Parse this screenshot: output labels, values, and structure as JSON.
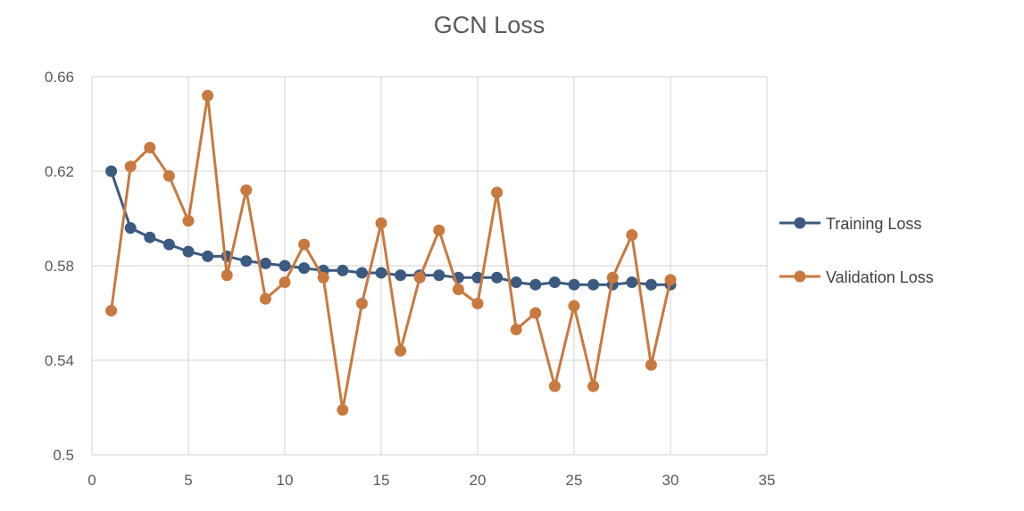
{
  "chart_data": {
    "type": "line",
    "title": "GCN Loss",
    "xlabel": "",
    "ylabel": "",
    "xlim": [
      0,
      35
    ],
    "ylim": [
      0.5,
      0.66
    ],
    "xticks": [
      0,
      5,
      10,
      15,
      20,
      25,
      30,
      35
    ],
    "yticks": [
      0.5,
      0.54,
      0.58,
      0.62,
      0.66
    ],
    "ytick_labels": [
      "0.5",
      "0.54",
      "0.58",
      "0.62",
      "0.66"
    ],
    "grid": true,
    "legend_position": "right",
    "x": [
      1,
      2,
      3,
      4,
      5,
      6,
      7,
      8,
      9,
      10,
      11,
      12,
      13,
      14,
      15,
      16,
      17,
      18,
      19,
      20,
      21,
      22,
      23,
      24,
      25,
      26,
      27,
      28,
      29,
      30
    ],
    "series": [
      {
        "name": "Training Loss",
        "color": "#3c5a80",
        "values": [
          0.62,
          0.596,
          0.592,
          0.589,
          0.586,
          0.584,
          0.584,
          0.582,
          0.581,
          0.58,
          0.579,
          0.578,
          0.578,
          0.577,
          0.577,
          0.576,
          0.576,
          0.576,
          0.575,
          0.575,
          0.575,
          0.573,
          0.572,
          0.573,
          0.572,
          0.572,
          0.572,
          0.573,
          0.572,
          0.572
        ]
      },
      {
        "name": "Validation Loss",
        "color": "#c8793f",
        "values": [
          0.561,
          0.622,
          0.63,
          0.618,
          0.599,
          0.652,
          0.576,
          0.612,
          0.566,
          0.573,
          0.589,
          0.575,
          0.519,
          0.564,
          0.598,
          0.544,
          0.575,
          0.595,
          0.57,
          0.564,
          0.611,
          0.553,
          0.56,
          0.529,
          0.563,
          0.529,
          0.575,
          0.593,
          0.538,
          0.574
        ]
      }
    ]
  }
}
